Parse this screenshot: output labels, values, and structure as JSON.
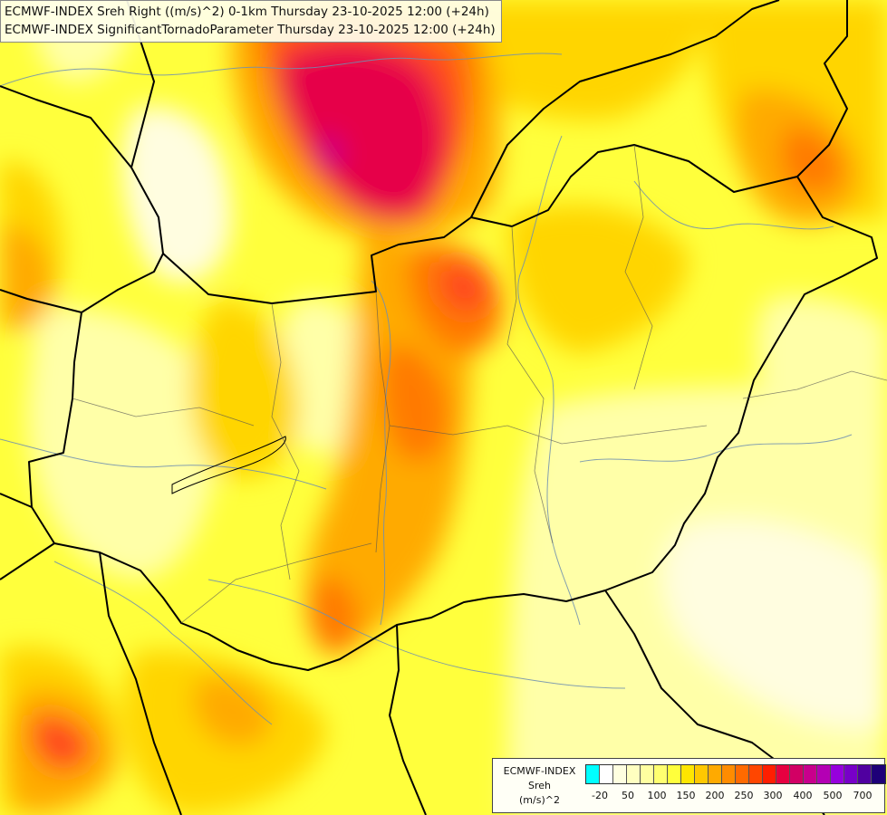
{
  "title": {
    "line1": "ECMWF-INDEX Sreh Right ((m/s)^2) 0-1km Thursday 23-10-2025 12:00 (+24h)",
    "line2": "ECMWF-INDEX SignificantTornadoParameter Thursday 23-10-2025 12:00 (+24h)"
  },
  "legend": {
    "model": "ECMWF-INDEX",
    "variable": "Sreh",
    "unit": "(m/s)^2",
    "colors": [
      "#00ffff",
      "#ffffff",
      "#ffffe0",
      "#ffffc0",
      "#ffffa0",
      "#ffff70",
      "#ffff3c",
      "#ffe600",
      "#ffc800",
      "#ffaa00",
      "#ff8c00",
      "#ff6a00",
      "#ff4600",
      "#ff1e00",
      "#e60040",
      "#d20064",
      "#c8008c",
      "#b400b4",
      "#9600dc",
      "#7800c8",
      "#5000a0",
      "#1e0078"
    ],
    "labels": [
      "-20",
      "50",
      "100",
      "150",
      "200",
      "250",
      "300",
      "400",
      "500",
      "700"
    ]
  },
  "map": {
    "fill_colors": {
      "very_low": "#fffde0",
      "low": "#ffffa8",
      "base": "#ffff3c",
      "mid": "#ffd500",
      "elevated": "#ffaa00",
      "high": "#ff7a00",
      "very_high": "#ff4a1c",
      "extreme": "#e6004a",
      "peak": "#c8008c"
    }
  }
}
